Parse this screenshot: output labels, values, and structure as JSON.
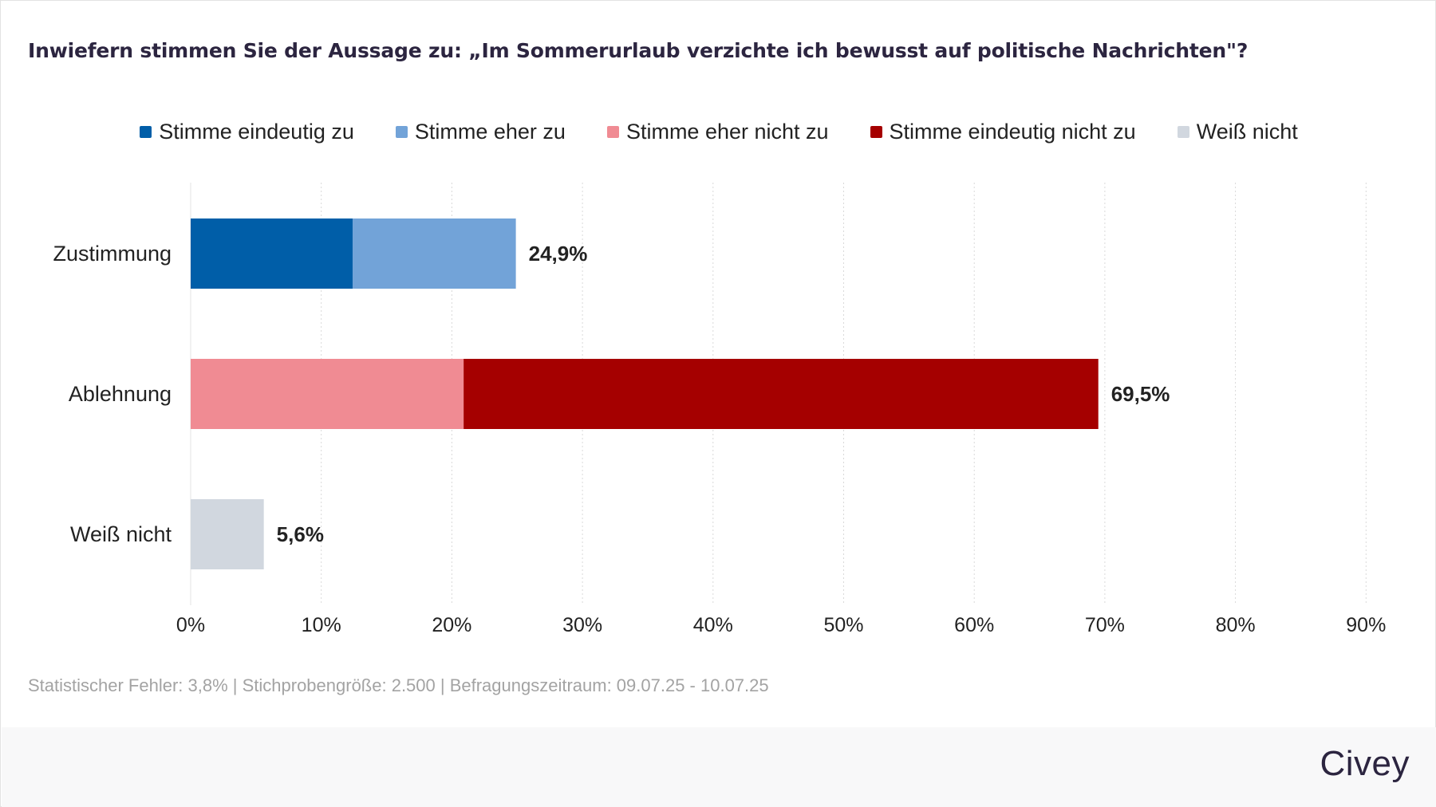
{
  "title": "Inwiefern stimmen Sie der Aussage zu: „Im Sommerurlaub verzichte ich bewusst auf politische Nachrichten\"?",
  "legend": [
    {
      "label": "Stimme eindeutig zu",
      "color": "#005ea8"
    },
    {
      "label": "Stimme eher zu",
      "color": "#72a3d8"
    },
    {
      "label": "Stimme eher nicht zu",
      "color": "#f08b93"
    },
    {
      "label": "Stimme eindeutig nicht zu",
      "color": "#a50000"
    },
    {
      "label": "Weiß nicht",
      "color": "#d1d7df"
    }
  ],
  "chart_data": {
    "type": "bar",
    "orientation": "horizontal",
    "stacked": true,
    "categories": [
      "Zustimmung",
      "Ablehnung",
      "Weiß nicht"
    ],
    "series": [
      {
        "name": "Stimme eindeutig zu",
        "values": [
          12.4,
          0,
          0
        ],
        "color": "#005ea8"
      },
      {
        "name": "Stimme eher zu",
        "values": [
          12.5,
          0,
          0
        ],
        "color": "#72a3d8"
      },
      {
        "name": "Stimme eher nicht zu",
        "values": [
          0,
          20.9,
          0
        ],
        "color": "#f08b93"
      },
      {
        "name": "Stimme eindeutig nicht zu",
        "values": [
          0,
          48.6,
          0
        ],
        "color": "#a50000"
      },
      {
        "name": "Weiß nicht",
        "values": [
          0,
          0,
          5.6
        ],
        "color": "#d1d7df"
      }
    ],
    "total_labels": [
      "24,9%",
      "69,5%",
      "5,6%"
    ],
    "xlim": [
      0,
      90
    ],
    "x_ticks": [
      0,
      10,
      20,
      30,
      40,
      50,
      60,
      70,
      80,
      90
    ],
    "x_tick_labels": [
      "0%",
      "10%",
      "20%",
      "30%",
      "40%",
      "50%",
      "60%",
      "70%",
      "80%",
      "90%"
    ],
    "grid": true,
    "legend_position": "top"
  },
  "footer": {
    "note": "Statistischer Fehler: 3,8% | Stichprobengröße: 2.500 | Befragungszeitraum: 09.07.25 - 10.07.25",
    "brand": "Civey"
  }
}
